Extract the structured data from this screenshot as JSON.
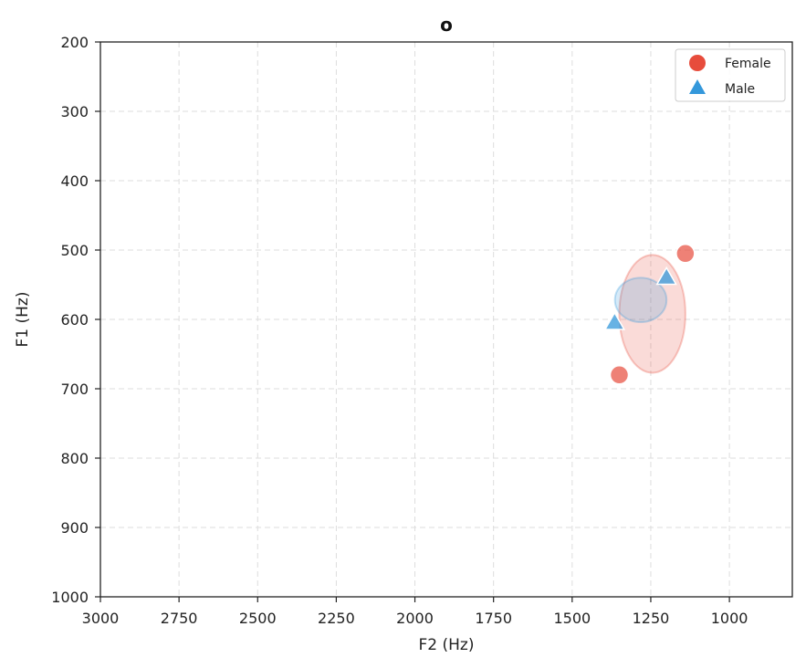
{
  "chart_data": {
    "type": "scatter",
    "title": "o",
    "xlabel": "F2 (Hz)",
    "ylabel": "F1 (Hz)",
    "xlim": [
      3000,
      800
    ],
    "ylim": [
      1000,
      200
    ],
    "x_inverted": true,
    "y_inverted": true,
    "xticks": [
      3000,
      2750,
      2500,
      2250,
      2000,
      1750,
      1500,
      1250,
      1000
    ],
    "yticks": [
      200,
      300,
      400,
      500,
      600,
      700,
      800,
      900,
      1000
    ],
    "grid": true,
    "legend_position": "top-right",
    "series": [
      {
        "name": "Female",
        "marker": "circle",
        "color": "#e74c3c",
        "points": [
          {
            "x": 1140,
            "y": 505
          },
          {
            "x": 1350,
            "y": 680
          }
        ],
        "ellipse": {
          "cx": 1245,
          "cy": 592,
          "rx": 105,
          "ry": 85
        }
      },
      {
        "name": "Male",
        "marker": "triangle",
        "color": "#3498db",
        "points": [
          {
            "x": 1200,
            "y": 540
          },
          {
            "x": 1365,
            "y": 605
          }
        ],
        "ellipse": {
          "cx": 1282,
          "cy": 572,
          "rx": 82,
          "ry": 32
        }
      }
    ]
  }
}
